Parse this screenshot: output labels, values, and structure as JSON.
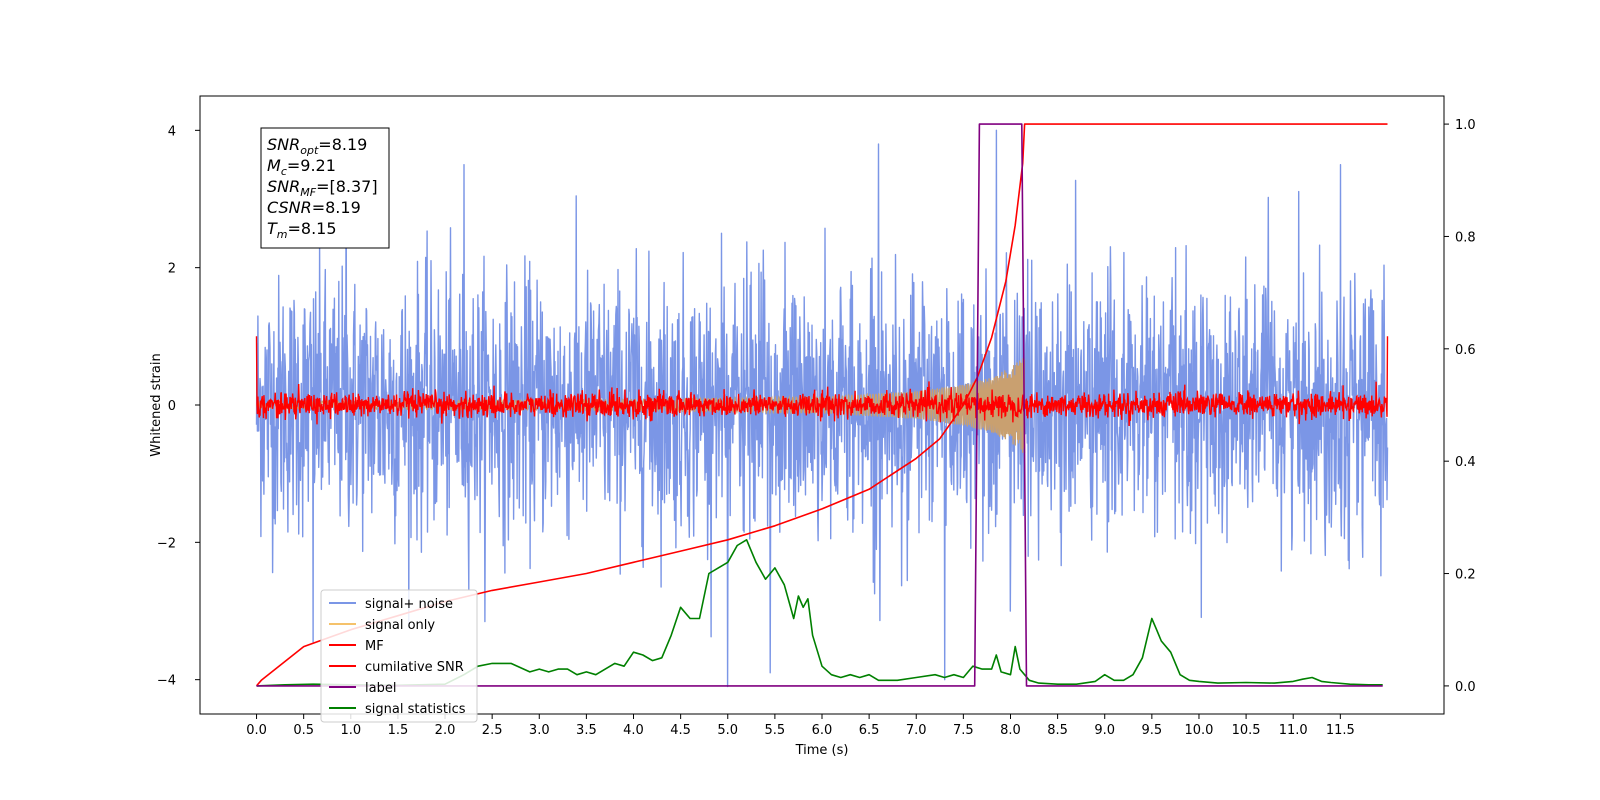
{
  "chart_data": {
    "type": "line",
    "title": "",
    "xlabel": "Time (s)",
    "ylabel": "Whitened strain",
    "xlim": [
      -0.6,
      12.6
    ],
    "ylim": [
      -4.5,
      4.5
    ],
    "y2lim": [
      -0.05,
      1.05
    ],
    "x_ticks": [
      0.0,
      0.5,
      1.0,
      1.5,
      2.0,
      2.5,
      3.0,
      3.5,
      4.0,
      4.5,
      5.0,
      5.5,
      6.0,
      6.5,
      7.0,
      7.5,
      8.0,
      8.5,
      9.0,
      9.5,
      10.0,
      10.5,
      11.0,
      11.5
    ],
    "x_tick_labels": [
      "0.0",
      "0.5",
      "1.0",
      "1.5",
      "2.0",
      "2.5",
      "3.0",
      "3.5",
      "4.0",
      "4.5",
      "5.0",
      "5.5",
      "6.0",
      "6.5",
      "7.0",
      "7.5",
      "8.0",
      "8.5",
      "9.0",
      "9.5",
      "10.0",
      "10.5",
      "11.0",
      "11.5"
    ],
    "y_ticks": [
      -4,
      -2,
      0,
      2,
      4
    ],
    "y_tick_labels": [
      "−4",
      "−2",
      "0",
      "2",
      "4"
    ],
    "y2_ticks": [
      0.0,
      0.2,
      0.4,
      0.6,
      0.8,
      1.0
    ],
    "y2_tick_labels": [
      "0.0",
      "0.2",
      "0.4",
      "0.6",
      "0.8",
      "1.0"
    ],
    "grid": false,
    "legend_position": "lower-left",
    "annotation": {
      "lines": [
        {
          "base": "SNR",
          "sub": "opt",
          "value": "=8.19"
        },
        {
          "base": "M",
          "sub": "c",
          "value": "=9.21"
        },
        {
          "base": "SNR",
          "sub": "MF",
          "value": "=[8.37]"
        },
        {
          "base": "CSNR",
          "sub": "",
          "value": "=8.19"
        },
        {
          "base": "T",
          "sub": "m",
          "value": "=8.15"
        }
      ]
    },
    "series": [
      {
        "name": "signal+ noise",
        "color": "#7b96e6",
        "axis": "left",
        "kind": "noise-band",
        "x_start": 0.0,
        "x_end": 12.0,
        "typical_amplitude": 1.5,
        "peak_amplitude": 3.5,
        "outliers": [
          [
            0.95,
            4.0
          ],
          [
            2.2,
            3.5
          ],
          [
            5.0,
            -4.1
          ],
          [
            6.6,
            3.8
          ],
          [
            7.3,
            -4.0
          ],
          [
            7.85,
            4.0
          ],
          [
            11.5,
            3.5
          ],
          [
            0.6,
            -3.45
          ],
          [
            5.45,
            -3.9
          ]
        ]
      },
      {
        "name": "signal only",
        "color": "#f5c26b",
        "axis": "left",
        "kind": "chirp",
        "x_start": 0.0,
        "x_end": 8.15,
        "envelope": [
          [
            0.0,
            0.05
          ],
          [
            4.0,
            0.08
          ],
          [
            6.0,
            0.12
          ],
          [
            7.0,
            0.2
          ],
          [
            7.5,
            0.3
          ],
          [
            7.8,
            0.4
          ],
          [
            8.0,
            0.55
          ],
          [
            8.13,
            0.7
          ]
        ]
      },
      {
        "name": "MF",
        "color": "#ff0000",
        "axis": "left",
        "kind": "noise-band",
        "x_start": 0.0,
        "x_end": 12.0,
        "typical_amplitude": 0.15,
        "peak_amplitude": 0.38,
        "edge_values": [
          [
            0.0,
            1.0
          ],
          [
            12.0,
            1.0
          ]
        ]
      },
      {
        "name": "cumilative SNR",
        "color": "#ff0000",
        "axis": "right",
        "x": [
          0.0,
          0.05,
          0.5,
          1.0,
          1.5,
          2.0,
          2.5,
          3.0,
          3.5,
          4.0,
          4.5,
          5.0,
          5.5,
          6.0,
          6.5,
          7.0,
          7.25,
          7.5,
          7.65,
          7.8,
          7.95,
          8.05,
          8.13,
          8.15,
          12.0
        ],
        "y": [
          0.0,
          0.01,
          0.07,
          0.1,
          0.125,
          0.15,
          0.17,
          0.185,
          0.2,
          0.22,
          0.24,
          0.26,
          0.285,
          0.315,
          0.35,
          0.405,
          0.44,
          0.5,
          0.55,
          0.62,
          0.72,
          0.82,
          0.93,
          1.0,
          1.0
        ]
      },
      {
        "name": "label",
        "color": "#800080",
        "axis": "right",
        "x": [
          0.0,
          7.62,
          7.67,
          8.12,
          8.17,
          11.95
        ],
        "y": [
          0.0,
          0.0,
          1.0,
          1.0,
          0.0,
          0.0
        ]
      },
      {
        "name": "signal statistics",
        "color": "#008000",
        "axis": "right",
        "x": [
          0.0,
          0.3,
          0.6,
          1.0,
          1.5,
          2.0,
          2.2,
          2.35,
          2.5,
          2.7,
          2.9,
          3.0,
          3.1,
          3.2,
          3.3,
          3.4,
          3.5,
          3.6,
          3.8,
          3.9,
          4.0,
          4.1,
          4.2,
          4.3,
          4.4,
          4.5,
          4.6,
          4.7,
          4.8,
          4.9,
          5.0,
          5.1,
          5.2,
          5.3,
          5.4,
          5.5,
          5.6,
          5.7,
          5.75,
          5.8,
          5.85,
          5.9,
          6.0,
          6.1,
          6.2,
          6.3,
          6.4,
          6.5,
          6.6,
          6.8,
          7.0,
          7.2,
          7.3,
          7.4,
          7.5,
          7.6,
          7.7,
          7.8,
          7.85,
          7.9,
          8.0,
          8.05,
          8.1,
          8.2,
          8.3,
          8.5,
          8.7,
          8.9,
          9.0,
          9.1,
          9.2,
          9.3,
          9.4,
          9.5,
          9.55,
          9.6,
          9.7,
          9.75,
          9.8,
          9.9,
          10.0,
          10.2,
          10.5,
          10.8,
          11.0,
          11.1,
          11.2,
          11.3,
          11.4,
          11.6,
          11.8,
          11.95
        ],
        "y": [
          0.0,
          0.002,
          0.003,
          0.002,
          0.001,
          0.003,
          0.02,
          0.035,
          0.04,
          0.04,
          0.025,
          0.03,
          0.025,
          0.03,
          0.03,
          0.02,
          0.025,
          0.02,
          0.04,
          0.035,
          0.06,
          0.055,
          0.045,
          0.05,
          0.09,
          0.14,
          0.12,
          0.12,
          0.2,
          0.21,
          0.22,
          0.25,
          0.26,
          0.22,
          0.19,
          0.21,
          0.18,
          0.12,
          0.16,
          0.14,
          0.155,
          0.09,
          0.035,
          0.02,
          0.015,
          0.02,
          0.015,
          0.02,
          0.01,
          0.01,
          0.015,
          0.02,
          0.015,
          0.02,
          0.015,
          0.035,
          0.03,
          0.03,
          0.055,
          0.025,
          0.02,
          0.07,
          0.03,
          0.01,
          0.005,
          0.003,
          0.003,
          0.008,
          0.02,
          0.01,
          0.01,
          0.02,
          0.05,
          0.12,
          0.1,
          0.08,
          0.06,
          0.04,
          0.02,
          0.01,
          0.008,
          0.005,
          0.006,
          0.005,
          0.008,
          0.012,
          0.015,
          0.008,
          0.006,
          0.003,
          0.002,
          0.002
        ]
      }
    ]
  }
}
